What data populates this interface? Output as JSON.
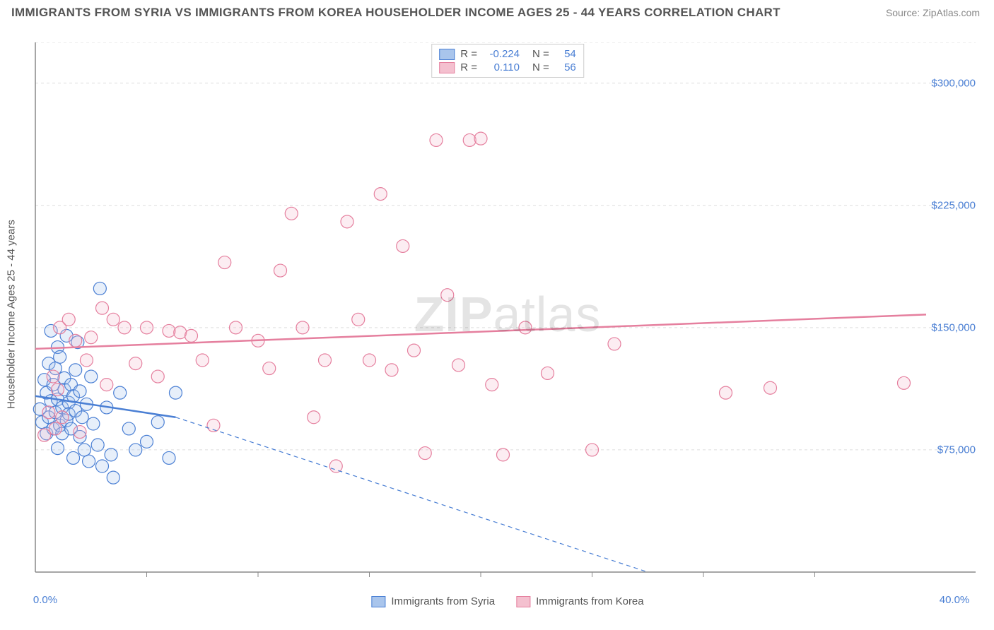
{
  "title": "IMMIGRANTS FROM SYRIA VS IMMIGRANTS FROM KOREA HOUSEHOLDER INCOME AGES 25 - 44 YEARS CORRELATION CHART",
  "source": "Source: ZipAtlas.com",
  "watermark": {
    "bold": "ZIP",
    "light": "atlas"
  },
  "chart": {
    "type": "scatter",
    "ylabel": "Householder Income Ages 25 - 44 years",
    "background_color": "#ffffff",
    "grid_color": "#dddddd",
    "axis_color": "#888888",
    "label_color": "#4a7fd4",
    "text_color": "#555555",
    "xlim": [
      0,
      40
    ],
    "ylim": [
      0,
      325000
    ],
    "x_ticks_minor": [
      5,
      10,
      15,
      20,
      25,
      30,
      35
    ],
    "x_tick_labels": [
      {
        "v": 0,
        "label": "0.0%"
      },
      {
        "v": 40,
        "label": "40.0%"
      }
    ],
    "y_gridlines": [
      75000,
      150000,
      225000,
      300000
    ],
    "y_tick_labels": [
      {
        "v": 75000,
        "label": "$75,000"
      },
      {
        "v": 150000,
        "label": "$150,000"
      },
      {
        "v": 225000,
        "label": "$225,000"
      },
      {
        "v": 300000,
        "label": "$300,000"
      }
    ],
    "marker_radius": 9,
    "marker_stroke_width": 1.2,
    "marker_fill_opacity": 0.28,
    "series": [
      {
        "name": "Immigrants from Syria",
        "color_stroke": "#4a7fd4",
        "color_fill": "#a9c5ec",
        "r_value": "-0.224",
        "n_value": "54",
        "trend": {
          "x1": 0,
          "y1": 108000,
          "x2": 6.3,
          "y2": 95000,
          "dash_x2": 27.5,
          "dash_y2": 0,
          "width": 2.5
        },
        "points": [
          [
            0.2,
            100000
          ],
          [
            0.3,
            92000
          ],
          [
            0.4,
            118000
          ],
          [
            0.5,
            85000
          ],
          [
            0.5,
            110000
          ],
          [
            0.6,
            128000
          ],
          [
            0.6,
            95000
          ],
          [
            0.7,
            105000
          ],
          [
            0.7,
            148000
          ],
          [
            0.8,
            88000
          ],
          [
            0.8,
            115000
          ],
          [
            0.9,
            98000
          ],
          [
            0.9,
            125000
          ],
          [
            1.0,
            106000
          ],
          [
            1.0,
            138000
          ],
          [
            1.0,
            76000
          ],
          [
            1.1,
            90000
          ],
          [
            1.1,
            132000
          ],
          [
            1.2,
            101000
          ],
          [
            1.2,
            85000
          ],
          [
            1.3,
            119000
          ],
          [
            1.3,
            112000
          ],
          [
            1.4,
            93000
          ],
          [
            1.4,
            145000
          ],
          [
            1.5,
            104000
          ],
          [
            1.5,
            97000
          ],
          [
            1.6,
            88000
          ],
          [
            1.6,
            115000
          ],
          [
            1.7,
            108000
          ],
          [
            1.7,
            70000
          ],
          [
            1.8,
            124000
          ],
          [
            1.8,
            99000
          ],
          [
            1.9,
            141000
          ],
          [
            2.0,
            83000
          ],
          [
            2.0,
            111000
          ],
          [
            2.1,
            95000
          ],
          [
            2.2,
            75000
          ],
          [
            2.3,
            103000
          ],
          [
            2.4,
            68000
          ],
          [
            2.5,
            120000
          ],
          [
            2.6,
            91000
          ],
          [
            2.8,
            78000
          ],
          [
            2.9,
            174000
          ],
          [
            3.0,
            65000
          ],
          [
            3.2,
            101000
          ],
          [
            3.4,
            72000
          ],
          [
            3.5,
            58000
          ],
          [
            3.8,
            110000
          ],
          [
            4.2,
            88000
          ],
          [
            4.5,
            75000
          ],
          [
            5.0,
            80000
          ],
          [
            5.5,
            92000
          ],
          [
            6.0,
            70000
          ],
          [
            6.3,
            110000
          ]
        ]
      },
      {
        "name": "Immigrants from Korea",
        "color_stroke": "#e57f9e",
        "color_fill": "#f4c0cf",
        "r_value": "0.110",
        "n_value": "56",
        "trend": {
          "x1": 0,
          "y1": 137000,
          "x2": 40,
          "y2": 158000,
          "width": 2.5
        },
        "points": [
          [
            0.4,
            84000
          ],
          [
            0.6,
            98000
          ],
          [
            0.8,
            120000
          ],
          [
            0.9,
            88000
          ],
          [
            1.0,
            112000
          ],
          [
            1.1,
            150000
          ],
          [
            1.2,
            95000
          ],
          [
            1.5,
            155000
          ],
          [
            1.8,
            142000
          ],
          [
            2.0,
            86000
          ],
          [
            2.3,
            130000
          ],
          [
            2.5,
            144000
          ],
          [
            3.0,
            162000
          ],
          [
            3.2,
            115000
          ],
          [
            3.5,
            155000
          ],
          [
            4.0,
            150000
          ],
          [
            4.5,
            128000
          ],
          [
            5.0,
            150000
          ],
          [
            5.5,
            120000
          ],
          [
            6.0,
            148000
          ],
          [
            6.5,
            147000
          ],
          [
            7.0,
            145000
          ],
          [
            7.5,
            130000
          ],
          [
            8.0,
            90000
          ],
          [
            8.5,
            190000
          ],
          [
            9.0,
            150000
          ],
          [
            10.0,
            142000
          ],
          [
            10.5,
            125000
          ],
          [
            11.0,
            185000
          ],
          [
            11.5,
            220000
          ],
          [
            12.0,
            150000
          ],
          [
            12.5,
            95000
          ],
          [
            13.0,
            130000
          ],
          [
            13.5,
            65000
          ],
          [
            14.0,
            215000
          ],
          [
            14.5,
            155000
          ],
          [
            15.0,
            130000
          ],
          [
            15.5,
            232000
          ],
          [
            16.0,
            124000
          ],
          [
            16.5,
            200000
          ],
          [
            17.0,
            136000
          ],
          [
            17.5,
            73000
          ],
          [
            18.0,
            265000
          ],
          [
            18.5,
            170000
          ],
          [
            19.0,
            127000
          ],
          [
            19.5,
            265000
          ],
          [
            20.0,
            266000
          ],
          [
            20.5,
            115000
          ],
          [
            21.0,
            72000
          ],
          [
            22.0,
            150000
          ],
          [
            23.0,
            122000
          ],
          [
            25.0,
            75000
          ],
          [
            26.0,
            140000
          ],
          [
            31.0,
            110000
          ],
          [
            33.0,
            113000
          ],
          [
            39.0,
            116000
          ]
        ]
      }
    ],
    "legend_top": {
      "r_label": "R =",
      "n_label": "N ="
    },
    "legend_bottom_labels": [
      "Immigrants from Syria",
      "Immigrants from Korea"
    ]
  }
}
